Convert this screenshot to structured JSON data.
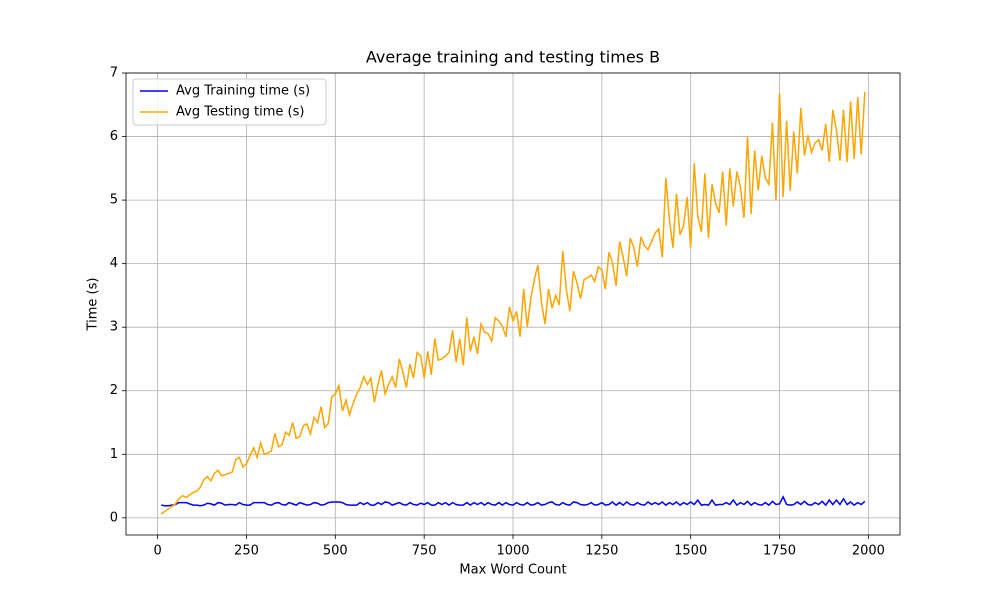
{
  "chart_data": {
    "type": "line",
    "title": "Average training and testing times B",
    "x_label": "Max Word Count",
    "y_label": "Time (s)",
    "x": [
      10,
      20,
      30,
      40,
      50,
      60,
      70,
      80,
      90,
      100,
      110,
      120,
      130,
      140,
      150,
      160,
      170,
      180,
      190,
      200,
      210,
      220,
      230,
      240,
      250,
      260,
      270,
      280,
      290,
      300,
      310,
      320,
      330,
      340,
      350,
      360,
      370,
      380,
      390,
      400,
      410,
      420,
      430,
      440,
      450,
      460,
      470,
      480,
      490,
      500,
      510,
      520,
      530,
      540,
      550,
      560,
      570,
      580,
      590,
      600,
      610,
      620,
      630,
      640,
      650,
      660,
      670,
      680,
      690,
      700,
      710,
      720,
      730,
      740,
      750,
      760,
      770,
      780,
      790,
      800,
      810,
      820,
      830,
      840,
      850,
      860,
      870,
      880,
      890,
      900,
      910,
      920,
      930,
      940,
      950,
      960,
      970,
      980,
      990,
      1000,
      1010,
      1020,
      1030,
      1040,
      1050,
      1060,
      1070,
      1080,
      1090,
      1100,
      1110,
      1120,
      1130,
      1140,
      1150,
      1160,
      1170,
      1180,
      1190,
      1200,
      1210,
      1220,
      1230,
      1240,
      1250,
      1260,
      1270,
      1280,
      1290,
      1300,
      1310,
      1320,
      1330,
      1340,
      1350,
      1360,
      1370,
      1380,
      1390,
      1400,
      1410,
      1420,
      1430,
      1440,
      1450,
      1460,
      1470,
      1480,
      1490,
      1500,
      1510,
      1520,
      1530,
      1540,
      1550,
      1560,
      1570,
      1580,
      1590,
      1600,
      1610,
      1620,
      1630,
      1640,
      1650,
      1660,
      1670,
      1680,
      1690,
      1700,
      1710,
      1720,
      1730,
      1740,
      1750,
      1760,
      1770,
      1780,
      1790,
      1800,
      1810,
      1820,
      1830,
      1840,
      1850,
      1860,
      1870,
      1880,
      1890,
      1900,
      1910,
      1920,
      1930,
      1940,
      1950,
      1960,
      1970,
      1980,
      1990
    ],
    "series": [
      {
        "name": "Avg Training time (s)",
        "color": "#0000ff",
        "values": [
          0.2,
          0.19,
          0.19,
          0.2,
          0.21,
          0.24,
          0.24,
          0.24,
          0.22,
          0.2,
          0.2,
          0.19,
          0.2,
          0.23,
          0.22,
          0.2,
          0.24,
          0.23,
          0.2,
          0.21,
          0.21,
          0.2,
          0.24,
          0.21,
          0.2,
          0.2,
          0.24,
          0.24,
          0.24,
          0.24,
          0.21,
          0.2,
          0.23,
          0.24,
          0.21,
          0.2,
          0.24,
          0.22,
          0.2,
          0.24,
          0.22,
          0.2,
          0.21,
          0.24,
          0.23,
          0.2,
          0.21,
          0.24,
          0.25,
          0.25,
          0.25,
          0.24,
          0.21,
          0.2,
          0.2,
          0.2,
          0.24,
          0.21,
          0.24,
          0.2,
          0.2,
          0.24,
          0.21,
          0.25,
          0.24,
          0.2,
          0.22,
          0.24,
          0.21,
          0.2,
          0.24,
          0.21,
          0.2,
          0.23,
          0.21,
          0.24,
          0.2,
          0.2,
          0.24,
          0.21,
          0.24,
          0.2,
          0.24,
          0.21,
          0.2,
          0.2,
          0.24,
          0.2,
          0.24,
          0.21,
          0.24,
          0.2,
          0.24,
          0.21,
          0.2,
          0.24,
          0.2,
          0.24,
          0.21,
          0.2,
          0.24,
          0.21,
          0.2,
          0.24,
          0.2,
          0.21,
          0.24,
          0.2,
          0.21,
          0.24,
          0.25,
          0.21,
          0.2,
          0.24,
          0.21,
          0.2,
          0.25,
          0.24,
          0.21,
          0.2,
          0.21,
          0.24,
          0.2,
          0.21,
          0.24,
          0.2,
          0.21,
          0.25,
          0.2,
          0.24,
          0.2,
          0.25,
          0.21,
          0.2,
          0.24,
          0.21,
          0.2,
          0.25,
          0.21,
          0.24,
          0.21,
          0.25,
          0.2,
          0.24,
          0.21,
          0.25,
          0.2,
          0.24,
          0.21,
          0.25,
          0.21,
          0.28,
          0.2,
          0.21,
          0.2,
          0.28,
          0.2,
          0.21,
          0.21,
          0.24,
          0.21,
          0.28,
          0.2,
          0.24,
          0.21,
          0.26,
          0.2,
          0.24,
          0.21,
          0.2,
          0.24,
          0.2,
          0.26,
          0.21,
          0.22,
          0.33,
          0.21,
          0.2,
          0.21,
          0.25,
          0.21,
          0.26,
          0.21,
          0.2,
          0.24,
          0.21,
          0.26,
          0.2,
          0.28,
          0.21,
          0.28,
          0.21,
          0.3,
          0.21,
          0.25,
          0.2,
          0.24,
          0.21,
          0.26
        ]
      },
      {
        "name": "Avg Testing time (s)",
        "color": "#ffa500",
        "values": [
          0.06,
          0.1,
          0.14,
          0.18,
          0.22,
          0.3,
          0.35,
          0.32,
          0.36,
          0.4,
          0.42,
          0.48,
          0.6,
          0.65,
          0.58,
          0.7,
          0.75,
          0.66,
          0.68,
          0.7,
          0.72,
          0.92,
          0.95,
          0.8,
          0.85,
          0.98,
          1.1,
          0.95,
          1.18,
          1.0,
          1.02,
          1.05,
          1.33,
          1.12,
          1.15,
          1.35,
          1.3,
          1.5,
          1.25,
          1.28,
          1.45,
          1.48,
          1.32,
          1.58,
          1.5,
          1.75,
          1.42,
          1.48,
          1.9,
          1.95,
          2.08,
          1.68,
          1.85,
          1.62,
          1.8,
          1.95,
          2.05,
          2.22,
          2.1,
          2.2,
          1.82,
          2.1,
          2.32,
          1.95,
          2.1,
          2.22,
          2.05,
          2.5,
          2.3,
          2.05,
          2.42,
          2.2,
          2.6,
          2.55,
          2.2,
          2.62,
          2.25,
          2.82,
          2.48,
          2.5,
          2.55,
          2.6,
          2.95,
          2.45,
          2.82,
          2.4,
          3.15,
          2.62,
          2.85,
          2.58,
          3.05,
          2.92,
          2.9,
          2.78,
          3.15,
          3.1,
          3.02,
          2.85,
          3.32,
          3.1,
          3.25,
          2.85,
          3.6,
          3.0,
          3.45,
          3.75,
          3.98,
          3.4,
          3.05,
          3.6,
          3.3,
          3.5,
          3.35,
          4.2,
          3.6,
          3.25,
          3.88,
          3.7,
          3.45,
          3.75,
          3.78,
          3.82,
          3.72,
          3.95,
          3.9,
          3.6,
          4.18,
          4.02,
          3.65,
          4.35,
          4.1,
          3.8,
          4.4,
          4.25,
          3.95,
          4.42,
          4.28,
          4.22,
          4.35,
          4.48,
          4.55,
          4.1,
          5.35,
          4.7,
          4.25,
          5.1,
          4.45,
          4.6,
          5.05,
          4.25,
          5.58,
          4.75,
          4.5,
          5.42,
          4.4,
          5.25,
          4.95,
          4.8,
          5.45,
          4.6,
          5.5,
          4.9,
          5.45,
          5.2,
          4.72,
          6.0,
          4.78,
          5.78,
          5.15,
          5.7,
          5.35,
          5.25,
          6.22,
          5.0,
          6.68,
          5.05,
          6.25,
          5.15,
          6.08,
          5.42,
          6.45,
          5.7,
          6.02,
          5.75,
          5.9,
          5.95,
          5.78,
          6.2,
          5.6,
          6.42,
          6.1,
          5.62,
          6.42,
          5.6,
          6.55,
          5.65,
          6.62,
          5.72,
          6.7
        ]
      }
    ],
    "xlim": [
      -89,
      2089
    ],
    "ylim": [
      -0.27,
      7.0
    ],
    "xticks": [
      0,
      250,
      500,
      750,
      1000,
      1250,
      1500,
      1750,
      2000
    ],
    "yticks": [
      0,
      1,
      2,
      3,
      4,
      5,
      6,
      7
    ],
    "grid": true,
    "legend": "upper left"
  }
}
